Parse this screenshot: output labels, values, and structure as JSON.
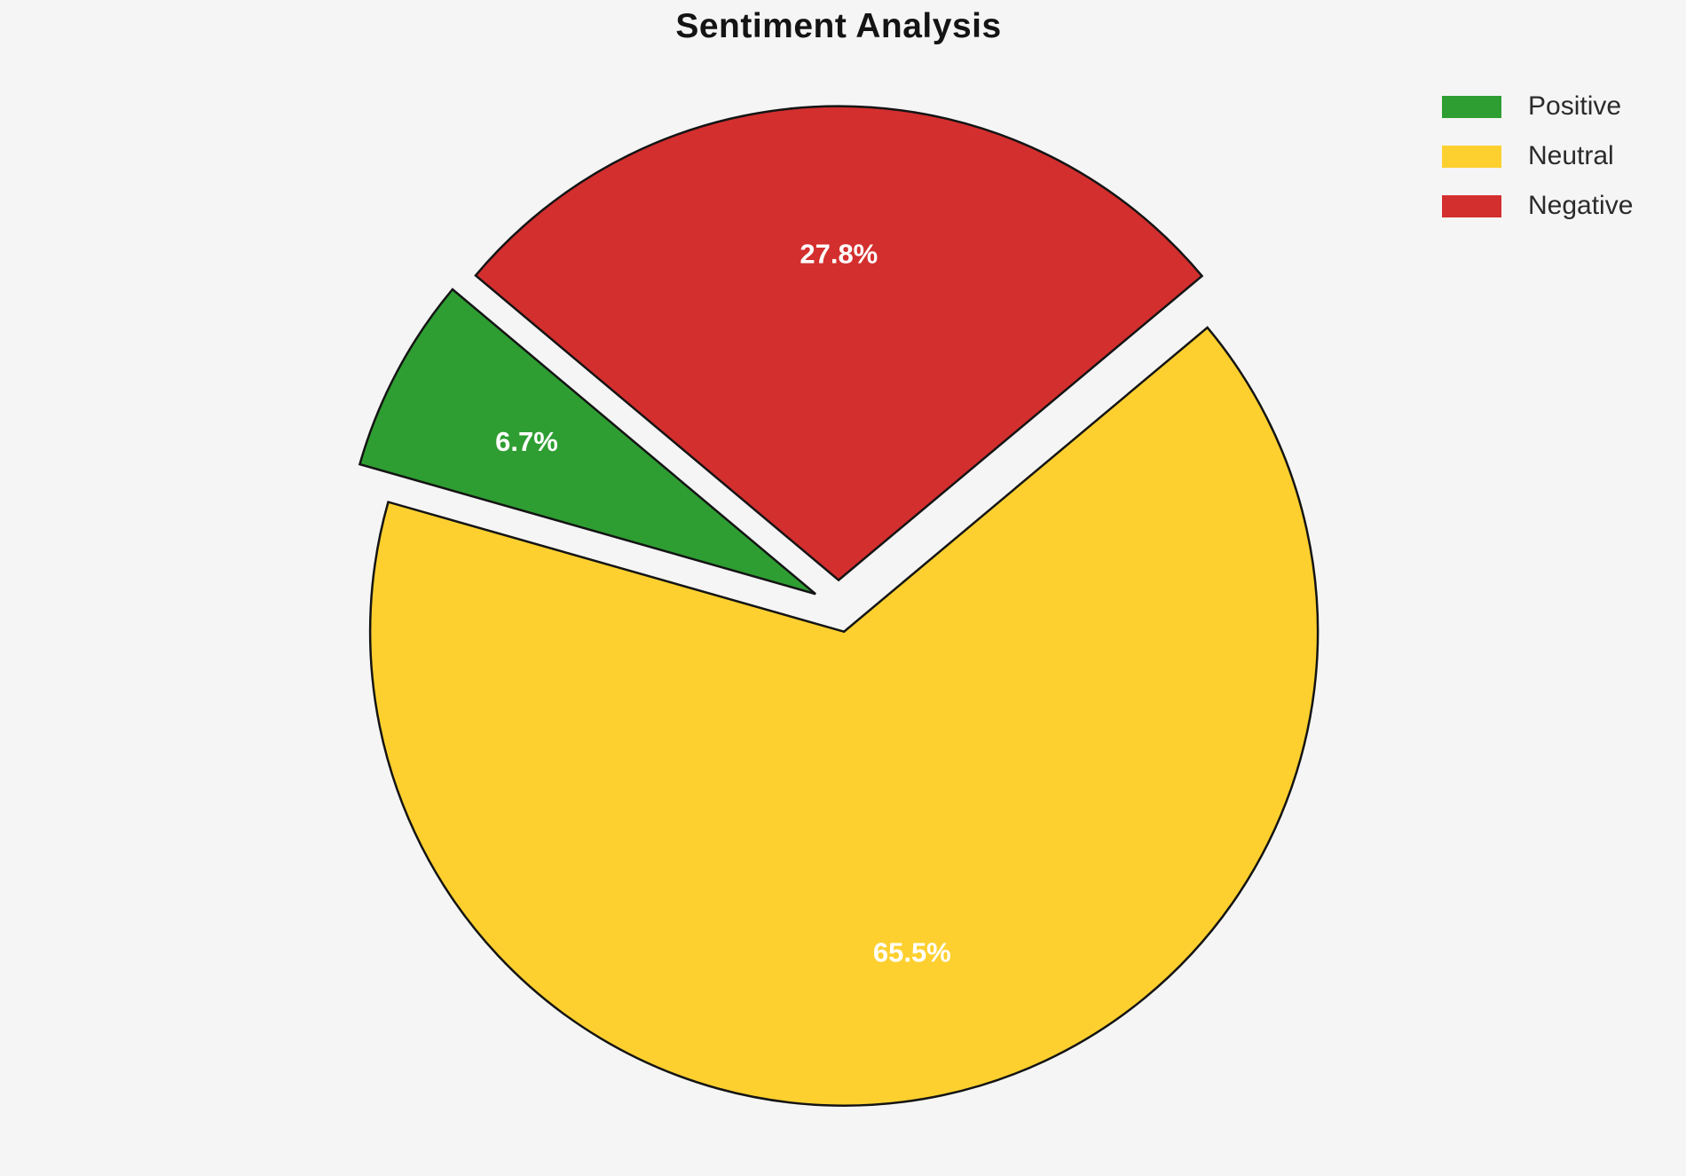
{
  "page": {
    "background_color": "#f5f5f5"
  },
  "chart_data": {
    "type": "pie",
    "title": "Sentiment Analysis",
    "slices": [
      {
        "label": "Positive",
        "value": 6.7,
        "pct_label": "6.7%",
        "color": "#2e9e32"
      },
      {
        "label": "Neutral",
        "value": 65.5,
        "pct_label": "65.5%",
        "color": "#fdd02f"
      },
      {
        "label": "Negative",
        "value": 27.8,
        "pct_label": "27.8%",
        "color": "#d32f2e"
      }
    ],
    "legend": {
      "position": "upper right",
      "entries": [
        "Positive",
        "Neutral",
        "Negative"
      ]
    },
    "start_angle": 140,
    "counterclock": true,
    "explode": [
      0.055,
      0.055,
      0.055
    ],
    "pct_distance": 0.69,
    "edge_color": "#141414",
    "edge_width": 2.5,
    "pct_label_color": "#ffffff",
    "title_color": "#141414",
    "legend_text_color": "#2b2b2b"
  }
}
